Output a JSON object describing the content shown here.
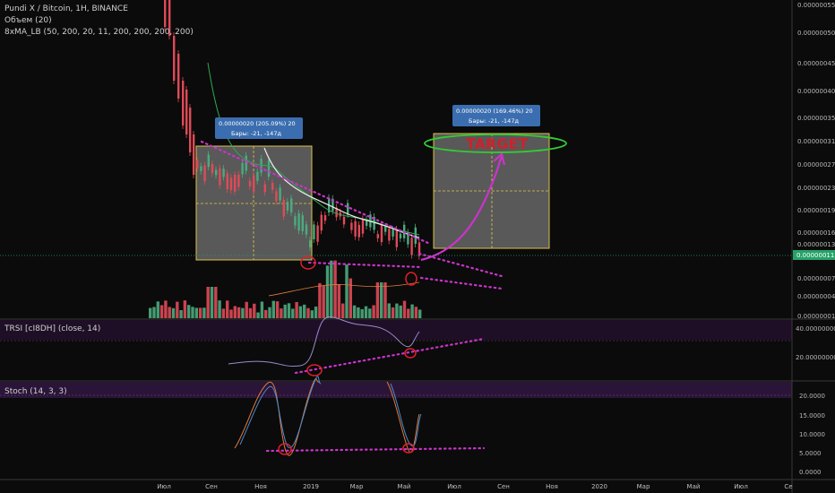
{
  "header": {
    "symbol_line": "Pundi X / Bitcoin, 1H, BINANCE",
    "volume_line": "Объем (20)",
    "ma_line": "8xMA_LB (50, 200, 20, 11, 200, 200, 200, 200)"
  },
  "panes": {
    "trsi_title": "TRSI [cI8DH] (close, 14)",
    "stoch_title": "Stoch (14, 3, 3)"
  },
  "colors": {
    "up": "#4bab7e",
    "down": "#e04a57",
    "projection": "#cc33cc",
    "target_ellipse": "#33cc33",
    "box_fill": "#9a9a9a",
    "box_border": "#d8c24a",
    "tooltip": "#3b6eb0",
    "last_price_tag": "#26a269"
  },
  "chart_data": {
    "type": "candlestick",
    "price_axis": {
      "ticks": [
        "0.00000055",
        "0.00000050",
        "0.00000045",
        "0.00000040",
        "0.00000035",
        "0.00000031",
        "0.00000027",
        "0.00000023",
        "0.00000019",
        "0.00000016",
        "0.00000013",
        "0.00000011",
        "0.00000007",
        "0.00000004",
        "0.00000001"
      ],
      "last_price": "0.00000011"
    },
    "time_axis": {
      "ticks": [
        "Июл",
        "Сен",
        "Ноя",
        "2019",
        "Мар",
        "Май",
        "Июл",
        "Сен",
        "Ноя",
        "2020",
        "Мар",
        "Май",
        "Июл",
        "Се"
      ]
    },
    "measure_tooltips": [
      {
        "line1": "0.00000020 (205.09%) 20",
        "line2": "Бары: -21, -147д"
      },
      {
        "line1": "0.00000020 (169.46%) 20",
        "line2": "Бары: -21, -147д"
      }
    ],
    "target_label": "TARGET",
    "trsi_axis": {
      "ticks": [
        "40.00000000",
        "20.00000000"
      ]
    },
    "stoch_axis": {
      "ticks": [
        "20.0000",
        "15.0000",
        "10.0000",
        "5.0000",
        "0.0000"
      ]
    }
  }
}
